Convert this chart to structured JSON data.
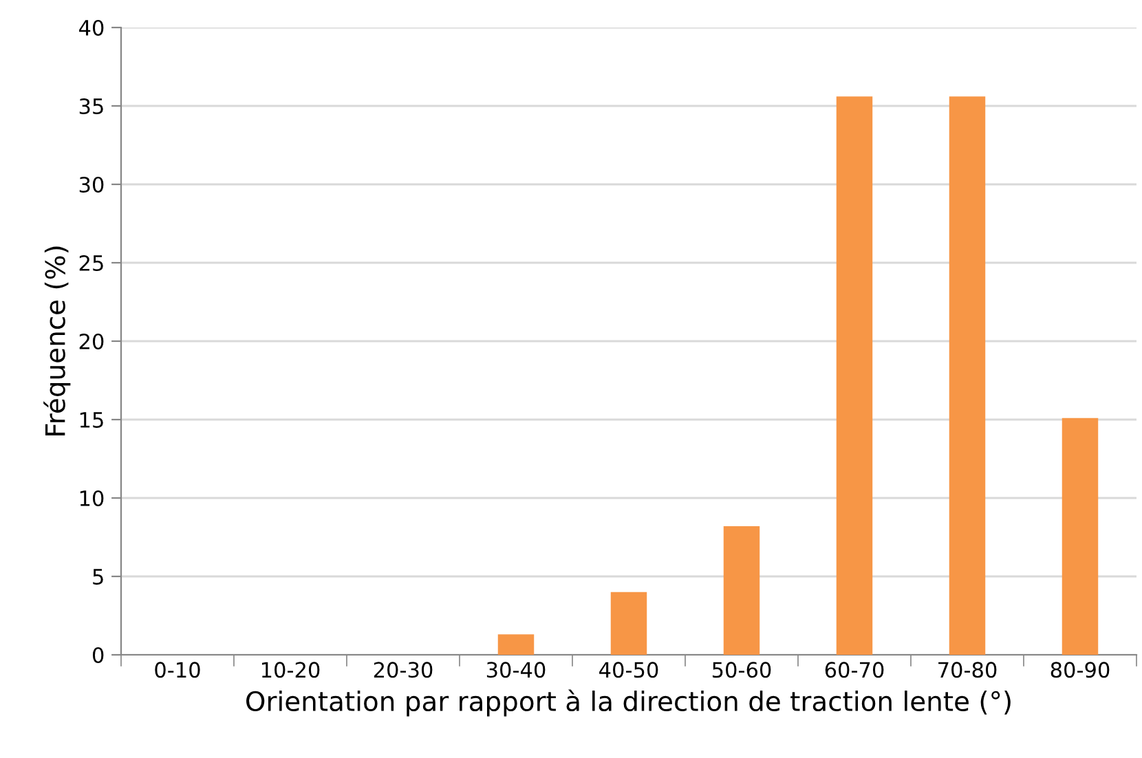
{
  "chart_data": {
    "type": "bar",
    "xlabel": "Orientation par rapport à la direction de traction lente (°)",
    "ylabel": "Fréquence (%)",
    "categories": [
      "0-10",
      "10-20",
      "20-30",
      "30-40",
      "40-50",
      "50-60",
      "60-70",
      "70-80",
      "80-90"
    ],
    "values": [
      0,
      0,
      0,
      1.3,
      4.0,
      8.2,
      35.6,
      35.6,
      15.1
    ],
    "color": "#f79646",
    "ylim": [
      0,
      40
    ],
    "yticks": [
      0,
      5,
      10,
      15,
      20,
      25,
      30,
      35,
      40
    ],
    "grid": "y"
  }
}
